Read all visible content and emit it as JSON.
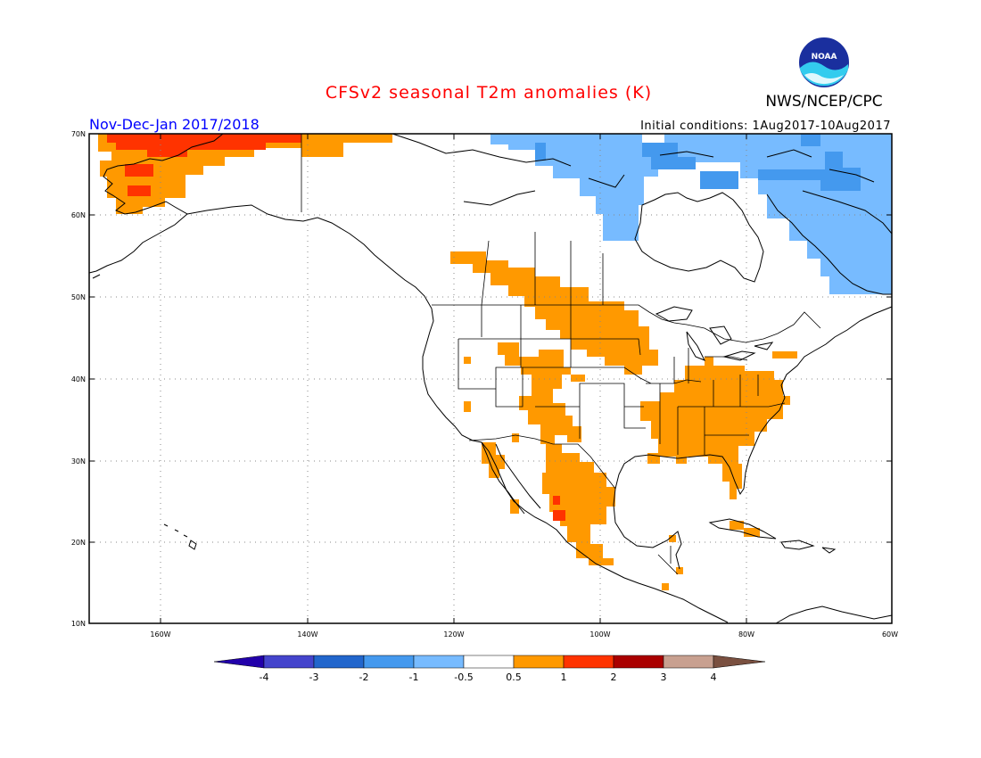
{
  "title": "CFSv2 seasonal T2m anomalies (K)",
  "period": "Nov-Dec-Jan 2017/2018",
  "initial_conditions": "Initial conditions: 1Aug2017-10Aug2017",
  "agency": "NWS/NCEP/CPC",
  "logo_text": "NOAA",
  "map": {
    "lon_range": [
      -172,
      -60
    ],
    "lat_range": [
      10,
      70
    ],
    "lon_ticks": [
      {
        "value": -160,
        "label": "160W"
      },
      {
        "value": -140,
        "label": "140W"
      },
      {
        "value": -120,
        "label": "120W"
      },
      {
        "value": -100,
        "label": "100W"
      },
      {
        "value": -80,
        "label": "80W"
      },
      {
        "value": -60,
        "label": "60W"
      }
    ],
    "lat_ticks": [
      {
        "value": 70,
        "label": "70N"
      },
      {
        "value": 60,
        "label": "60N"
      },
      {
        "value": 50,
        "label": "50N"
      },
      {
        "value": 40,
        "label": "40N"
      },
      {
        "value": 30,
        "label": "30N"
      },
      {
        "value": 20,
        "label": "20N"
      },
      {
        "value": 10,
        "label": "10N"
      }
    ],
    "grid": "dotted"
  },
  "colorbar": {
    "levels": [
      "-4",
      "-3",
      "-2",
      "-1",
      "-0.5",
      "0.5",
      "1",
      "2",
      "3",
      "4"
    ],
    "colors": [
      "#2200aa",
      "#4444cc",
      "#2266cc",
      "#4499ee",
      "#77bbff",
      "#ffffff",
      "#ff9900",
      "#ff3300",
      "#aa0000",
      "#c8a090",
      "#7a5040"
    ]
  },
  "anomaly_colors": {
    "warm_0_5_to_1": "#ff9900",
    "warm_1_to_2": "#ff3300",
    "cool_minus_0_5_to_minus_1": "#77bbff",
    "cool_minus_1_to_minus_2": "#4499ee"
  }
}
